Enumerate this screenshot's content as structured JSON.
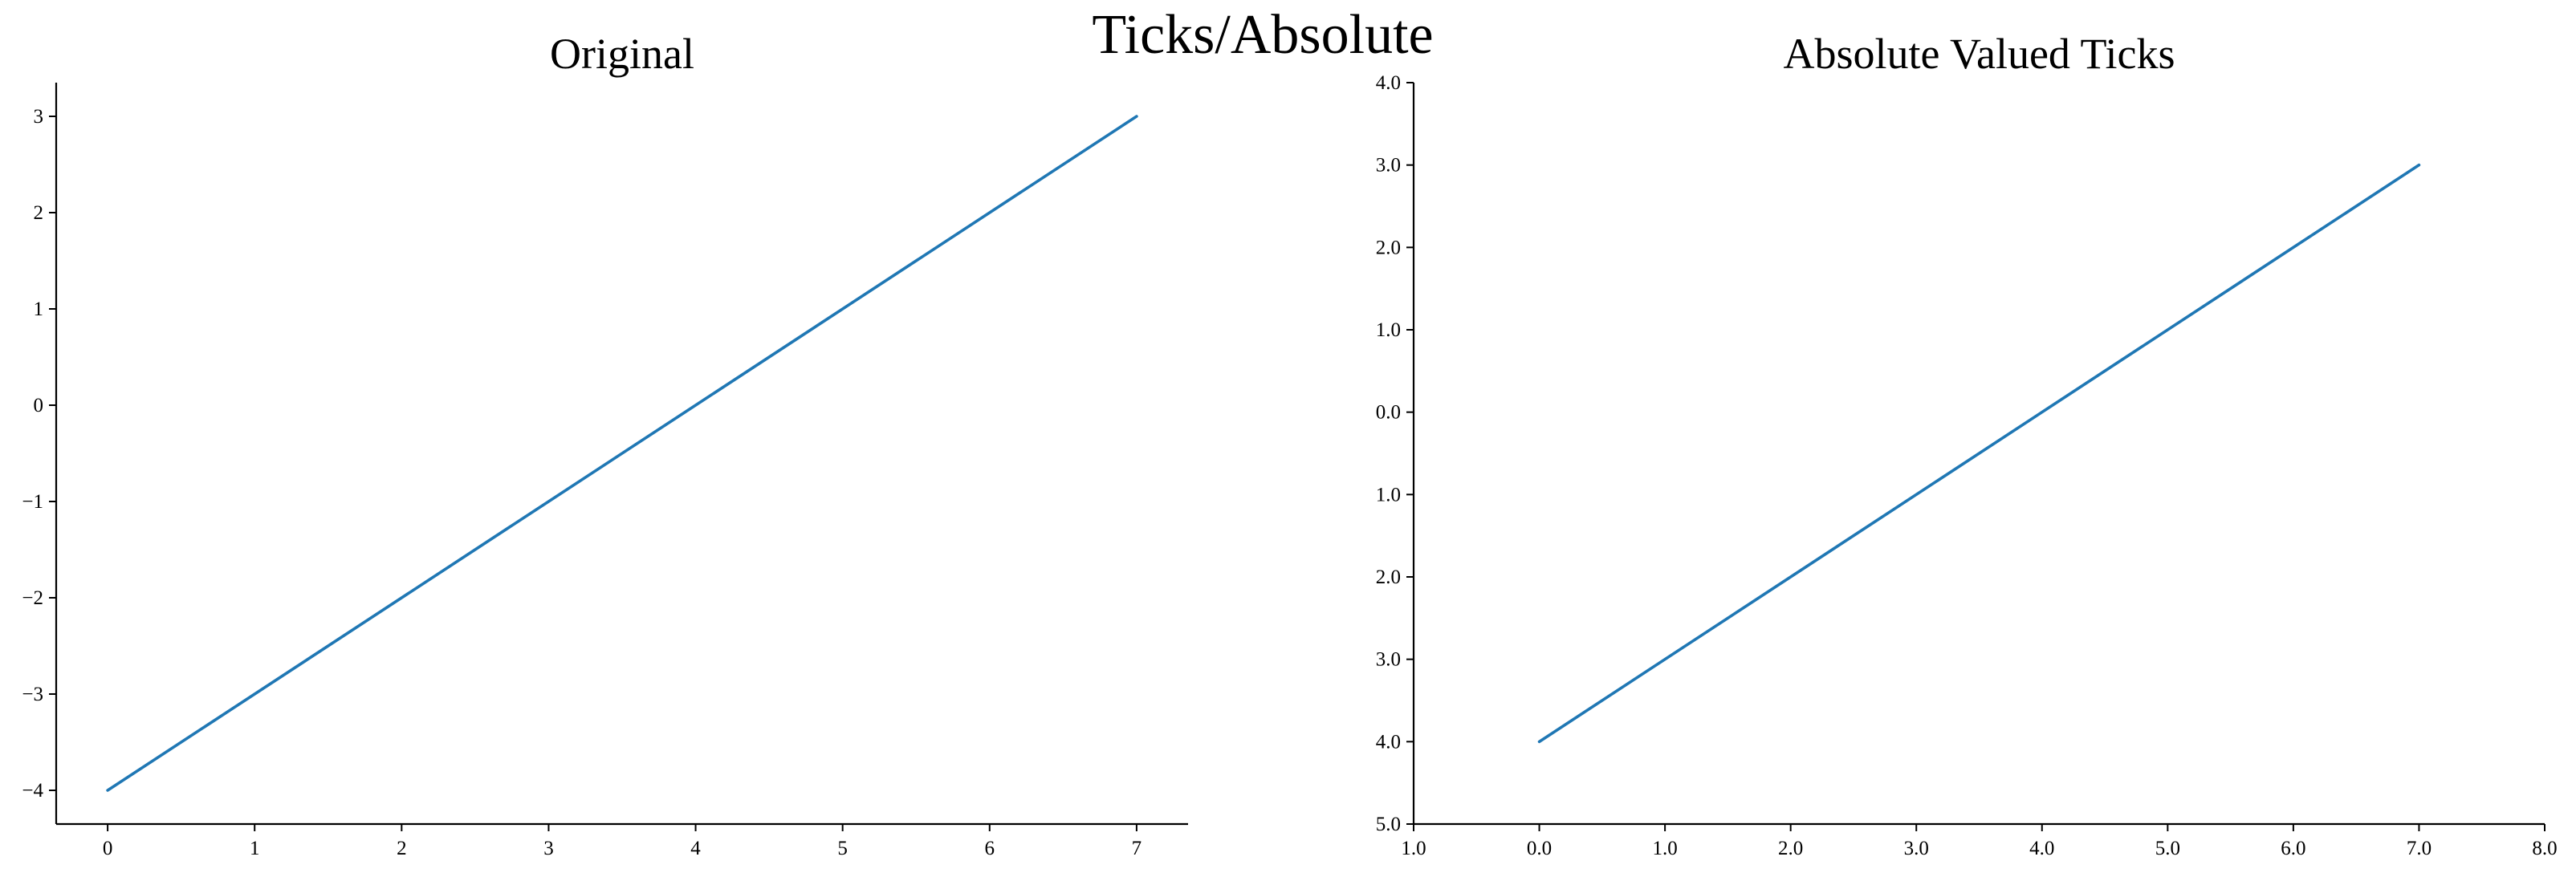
{
  "figure": {
    "suptitle": "Ticks/Absolute"
  },
  "chart_data": [
    {
      "type": "line",
      "title": "Original",
      "xlabel": "",
      "ylabel": "",
      "x": [
        0,
        7
      ],
      "series": [
        {
          "values": [
            -4,
            3
          ],
          "color": "#1f77b4"
        }
      ],
      "xlim": [
        -0.35,
        7.35
      ],
      "ylim": [
        -4.35,
        3.35
      ],
      "xticks": [
        0,
        1,
        2,
        3,
        4,
        5,
        6,
        7
      ],
      "xtick_labels": [
        "0",
        "1",
        "2",
        "3",
        "4",
        "5",
        "6",
        "7"
      ],
      "yticks": [
        -4,
        -3,
        -2,
        -1,
        0,
        1,
        2,
        3
      ],
      "ytick_labels": [
        "−4",
        "−3",
        "−2",
        "−1",
        "0",
        "1",
        "2",
        "3"
      ],
      "grid": false,
      "spines": "left-bottom"
    },
    {
      "type": "line",
      "title": "Absolute Valued Ticks",
      "xlabel": "",
      "ylabel": "",
      "x": [
        0,
        7
      ],
      "series": [
        {
          "values": [
            -4,
            3
          ],
          "color": "#1f77b4"
        }
      ],
      "xlim": [
        -1,
        8
      ],
      "ylim": [
        -5,
        4
      ],
      "xticks": [
        -1,
        0,
        1,
        2,
        3,
        4,
        5,
        6,
        7,
        8
      ],
      "xtick_labels": [
        "1.0",
        "0.0",
        "1.0",
        "2.0",
        "3.0",
        "4.0",
        "5.0",
        "6.0",
        "7.0",
        "8.0"
      ],
      "yticks": [
        -5,
        -4,
        -3,
        -2,
        -1,
        0,
        1,
        2,
        3,
        4
      ],
      "ytick_labels": [
        "5.0",
        "4.0",
        "3.0",
        "2.0",
        "1.0",
        "0.0",
        "1.0",
        "2.0",
        "3.0",
        "4.0"
      ],
      "grid": false,
      "spines": "left-bottom"
    }
  ]
}
